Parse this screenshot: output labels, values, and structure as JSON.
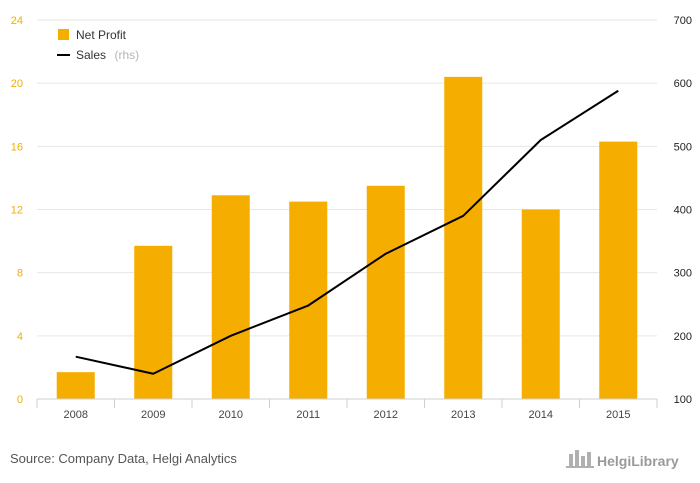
{
  "chart_data": {
    "type": "bar",
    "categories": [
      "2008",
      "2009",
      "2010",
      "2011",
      "2012",
      "2013",
      "2014",
      "2015"
    ],
    "series": [
      {
        "name": "Net Profit",
        "type": "bar",
        "axis": "left",
        "color": "#f5ae00",
        "values": [
          1.7,
          9.7,
          12.9,
          12.5,
          13.5,
          20.4,
          12.0,
          16.3
        ]
      },
      {
        "name": "Sales",
        "name_suffix": "(rhs)",
        "type": "line",
        "axis": "right",
        "color": "#000000",
        "values": [
          167,
          140,
          200,
          248,
          330,
          390,
          510,
          588
        ]
      }
    ],
    "y_left": {
      "range": [
        0,
        24
      ],
      "ticks": [
        "0",
        "4",
        "8",
        "12",
        "16",
        "20",
        "24"
      ],
      "color": "#f0ae00"
    },
    "y_right": {
      "range": [
        100,
        700
      ],
      "ticks": [
        "100",
        "200",
        "300",
        "400",
        "500",
        "600",
        "700"
      ]
    },
    "grid": true,
    "legend_position": "top-left"
  },
  "footer": {
    "source": "Source: Company Data, Helgi Analytics",
    "logo": "HelgiLibrary"
  }
}
